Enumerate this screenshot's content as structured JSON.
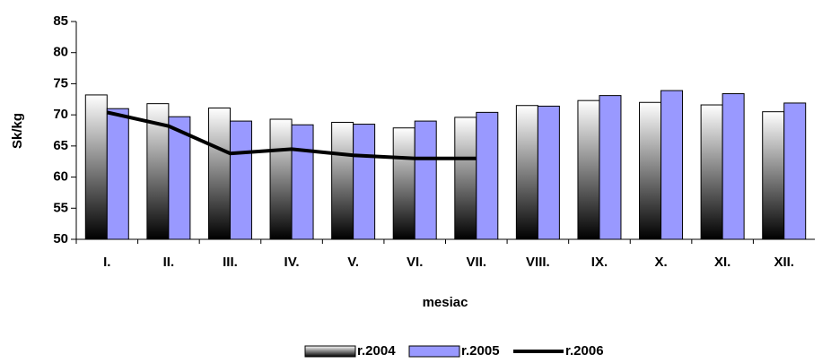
{
  "chart_data": {
    "type": "bar",
    "x_label": "mesiac",
    "y_label": "Sk/kg",
    "categories": [
      "I.",
      "II.",
      "III.",
      "IV.",
      "V.",
      "VI.",
      "VII.",
      "VIII.",
      "IX.",
      "X.",
      "XI.",
      "XII."
    ],
    "series": [
      {
        "name": "r.2004",
        "type": "bar",
        "color": "#ffffff",
        "gradient_to": "#000000",
        "values": [
          73.2,
          71.8,
          71.1,
          69.3,
          68.8,
          67.9,
          69.6,
          71.5,
          72.3,
          72.0,
          71.6,
          70.5
        ]
      },
      {
        "name": "r.2005",
        "type": "bar",
        "color": "#9999ff",
        "values": [
          71.0,
          69.7,
          69.0,
          68.4,
          68.5,
          69.0,
          70.4,
          71.4,
          73.1,
          73.9,
          73.4,
          71.9
        ]
      },
      {
        "name": "r.2006",
        "type": "line",
        "color": "#000000",
        "values": [
          70.4,
          68.2,
          63.8,
          64.5,
          63.5,
          63.0,
          63.0,
          null,
          null,
          null,
          null,
          null
        ]
      }
    ],
    "ylim": [
      50,
      85
    ],
    "yticks": [
      50,
      55,
      60,
      65,
      70,
      75,
      80,
      85
    ],
    "legend": "bottom"
  }
}
